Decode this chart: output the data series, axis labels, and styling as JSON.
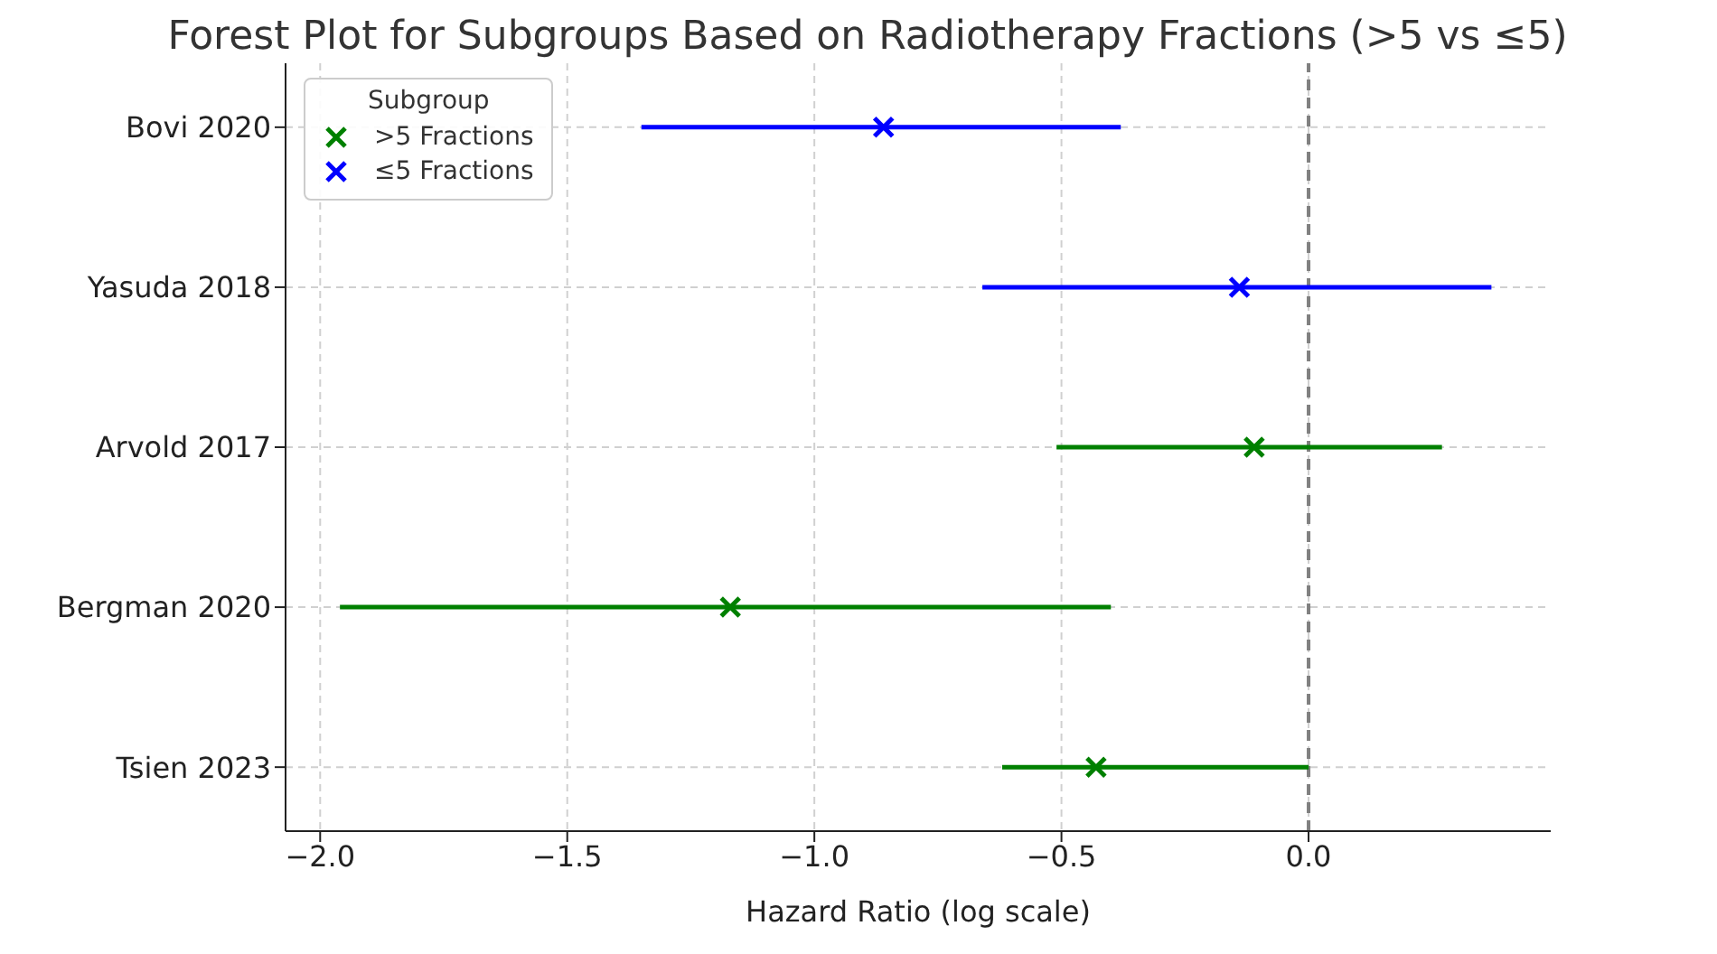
{
  "chart_data": {
    "type": "scatter",
    "orientation": "horizontal",
    "title": "Forest Plot for Subgroups Based on Radiotherapy Fractions (>5 vs ≤5)",
    "xlabel": "Hazard Ratio (log scale)",
    "categories": [
      "Bovi 2020",
      "Yasuda 2018",
      "Arvold 2017",
      "Bergman 2020",
      "Tsien 2023"
    ],
    "series": [
      {
        "name": ">5 Fractions",
        "color": "#008000",
        "values": [
          null,
          null,
          -0.11,
          -1.17,
          -0.43
        ],
        "errors": [
          null,
          null,
          [
            -0.51,
            0.27
          ],
          [
            -1.96,
            -0.4
          ],
          [
            -0.62,
            0.0
          ]
        ]
      },
      {
        "name": "≤5 Fractions",
        "color": "#0000ff",
        "values": [
          -0.86,
          -0.14,
          null,
          null,
          null
        ],
        "errors": [
          [
            -1.35,
            -0.38
          ],
          [
            -0.66,
            0.37
          ],
          null,
          null,
          null
        ]
      }
    ],
    "xlim": [
      -2.07,
      0.49
    ],
    "xticks": [
      {
        "value": -2,
        "label": "−2.0"
      },
      {
        "value": -1.5,
        "label": "−1.5"
      },
      {
        "value": -1,
        "label": "−1.0"
      },
      {
        "value": -0.5,
        "label": "−0.5"
      },
      {
        "value": 0,
        "label": "0.0"
      }
    ],
    "ref_lines": [
      {
        "axis": "x",
        "value": 0,
        "color": "#808080",
        "line_style": "dashed"
      }
    ],
    "grid": true,
    "legend": "top left",
    "legend_title": "Subgroup",
    "marker": "cross"
  }
}
